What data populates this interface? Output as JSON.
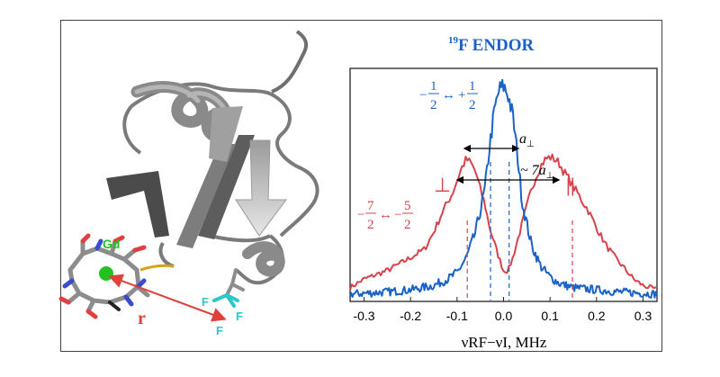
{
  "figure": {
    "title_superscript": "19",
    "title_main": "F ENDOR",
    "protein_labels": {
      "metal": "Gd",
      "distance": "r",
      "fluorine": "F"
    },
    "colors": {
      "blue": "#1a62c6",
      "red": "#d8424a",
      "protein_gray": "#8c8c8c",
      "distance_arrow": "#e0403a",
      "gd_atom": "#22c222",
      "fluorine": "#2ec7c9",
      "title": "#1a62c6"
    },
    "annotations": {
      "central_transition": {
        "num_left": "1",
        "den_left": "2",
        "num_right": "1",
        "den_right": "2",
        "minus": "−",
        "arrow": "↔",
        "plus": "+"
      },
      "outer_transition": {
        "num_left": "7",
        "den_left": "2",
        "num_right": "5",
        "den_right": "2",
        "minus": "−",
        "arrow": "↔"
      },
      "a_perp": "a",
      "seven_a_perp_prefix": "~ 7a",
      "perp_symbol": "⊥",
      "parallel_symbol": "||"
    }
  },
  "chart_data": {
    "type": "line",
    "title": "19F ENDOR",
    "xlabel": "νRF−νI, MHz",
    "xlim": [
      -0.33,
      0.33
    ],
    "ylim": [
      0,
      1.0
    ],
    "x_ticks": [
      -0.3,
      -0.2,
      -0.1,
      0.0,
      0.1,
      0.2,
      0.3
    ],
    "x_tick_labels": [
      "-0.3",
      "-0.2",
      "-0.1",
      "0.0",
      "0.1",
      "0.2",
      "0.3"
    ],
    "grid": false,
    "series": [
      {
        "color": "#d8424a",
        "x": [
          -0.33,
          -0.3,
          -0.25,
          -0.2,
          -0.17,
          -0.15,
          -0.13,
          -0.11,
          -0.1,
          -0.09,
          -0.08,
          -0.07,
          -0.06,
          -0.05,
          -0.04,
          -0.03,
          -0.02,
          -0.01,
          0.0,
          0.01,
          0.02,
          0.03,
          0.04,
          0.05,
          0.06,
          0.07,
          0.08,
          0.09,
          0.1,
          0.11,
          0.12,
          0.13,
          0.14,
          0.15,
          0.16,
          0.17,
          0.18,
          0.2,
          0.22,
          0.24,
          0.26,
          0.28,
          0.3,
          0.33
        ],
        "y": [
          0.06,
          0.1,
          0.14,
          0.2,
          0.24,
          0.32,
          0.42,
          0.5,
          0.56,
          0.62,
          0.66,
          0.64,
          0.6,
          0.52,
          0.45,
          0.34,
          0.27,
          0.2,
          0.14,
          0.14,
          0.2,
          0.28,
          0.36,
          0.44,
          0.52,
          0.58,
          0.63,
          0.66,
          0.67,
          0.66,
          0.64,
          0.6,
          0.57,
          0.53,
          0.5,
          0.46,
          0.43,
          0.34,
          0.26,
          0.2,
          0.15,
          0.1,
          0.07,
          0.05
        ]
      },
      {
        "color": "#1a62c6",
        "x": [
          -0.33,
          -0.25,
          -0.2,
          -0.15,
          -0.12,
          -0.1,
          -0.08,
          -0.06,
          -0.04,
          -0.03,
          -0.02,
          -0.01,
          0.0,
          0.01,
          0.02,
          0.03,
          0.04,
          0.06,
          0.08,
          0.1,
          0.12,
          0.15,
          0.2,
          0.25,
          0.33
        ],
        "y": [
          0.03,
          0.04,
          0.05,
          0.07,
          0.1,
          0.13,
          0.2,
          0.32,
          0.52,
          0.72,
          0.88,
          0.98,
          1.0,
          0.96,
          0.86,
          0.68,
          0.46,
          0.26,
          0.16,
          0.11,
          0.08,
          0.06,
          0.05,
          0.04,
          0.03
        ]
      }
    ],
    "vertical_markers": [
      {
        "x": -0.078,
        "color": "#d8424a"
      },
      {
        "x": -0.028,
        "color": "#1a62c6"
      },
      {
        "x": 0.012,
        "color": "#1a62c6"
      },
      {
        "x": 0.148,
        "color": "#d8424a"
      }
    ]
  }
}
